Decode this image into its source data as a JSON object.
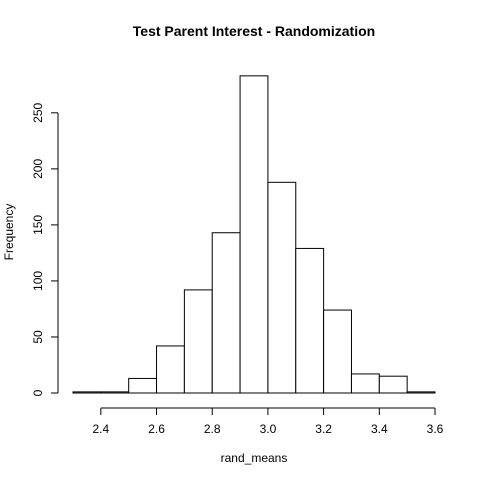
{
  "chart_data": {
    "type": "bar",
    "subtype": "histogram",
    "title": "Test Parent Interest - Randomization",
    "xlabel": "rand_means",
    "ylabel": "Frequency",
    "bins": [
      {
        "start": 2.3,
        "end": 2.4,
        "count": 1
      },
      {
        "start": 2.4,
        "end": 2.5,
        "count": 1
      },
      {
        "start": 2.5,
        "end": 2.6,
        "count": 13
      },
      {
        "start": 2.6,
        "end": 2.7,
        "count": 42
      },
      {
        "start": 2.7,
        "end": 2.8,
        "count": 92
      },
      {
        "start": 2.8,
        "end": 2.9,
        "count": 143
      },
      {
        "start": 2.9,
        "end": 3.0,
        "count": 283
      },
      {
        "start": 3.0,
        "end": 3.1,
        "count": 188
      },
      {
        "start": 3.1,
        "end": 3.2,
        "count": 129
      },
      {
        "start": 3.2,
        "end": 3.3,
        "count": 74
      },
      {
        "start": 3.3,
        "end": 3.4,
        "count": 17
      },
      {
        "start": 3.4,
        "end": 3.5,
        "count": 15
      },
      {
        "start": 3.5,
        "end": 3.6,
        "count": 1
      }
    ],
    "xlim": [
      2.3,
      3.6
    ],
    "ylim": [
      0,
      290
    ],
    "xticks": [
      2.4,
      2.6,
      2.8,
      3.0,
      3.2,
      3.4,
      3.6
    ],
    "xtick_labels": [
      "2.4",
      "2.6",
      "2.8",
      "3.0",
      "3.2",
      "3.4",
      "3.6"
    ],
    "yticks": [
      0,
      50,
      100,
      150,
      200,
      250
    ],
    "ytick_labels": [
      "0",
      "50",
      "100",
      "150",
      "200",
      "250"
    ],
    "grid": false,
    "legend": "none"
  }
}
